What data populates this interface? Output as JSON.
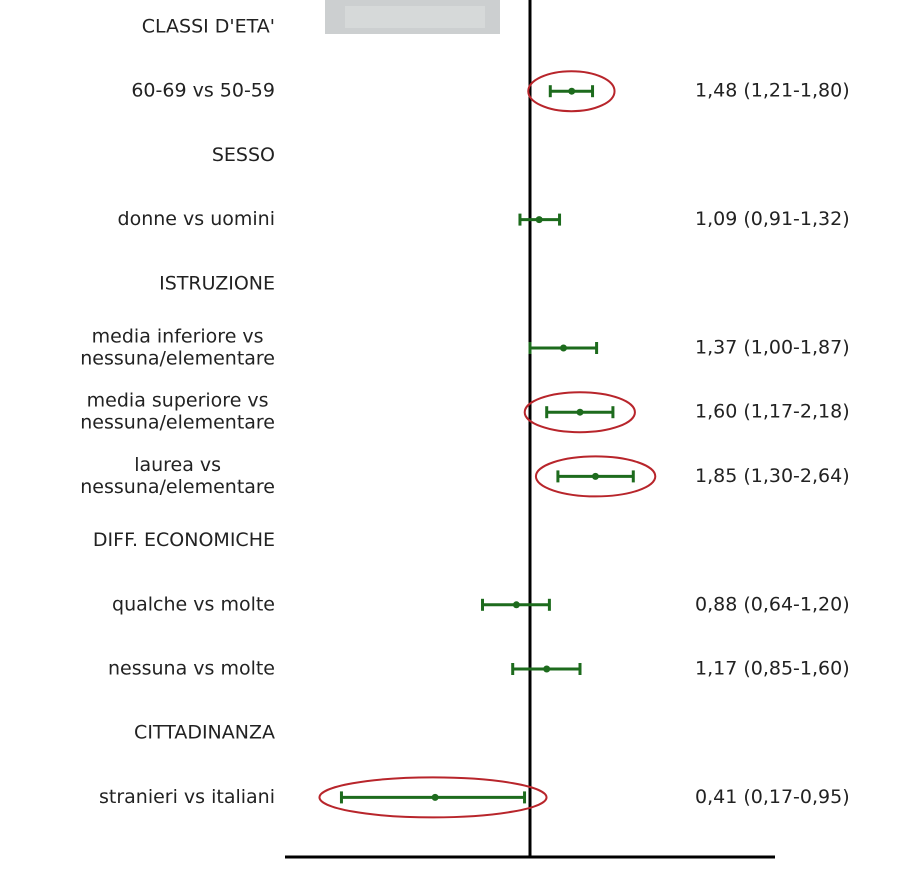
{
  "chart_data": {
    "type": "forest",
    "categories": [
      "CLASSI D'ETA'",
      "60-69 vs 50-59",
      "SESSO",
      "donne vs uomini",
      "ISTRUZIONE",
      [
        "media inferiore vs",
        "nessuna/elementare"
      ],
      [
        "media superiore vs",
        "nessuna/elementare"
      ],
      [
        "laurea vs",
        "nessuna/elementare"
      ],
      "DIFF. ECONOMICHE",
      "qualche vs molte",
      "nessuna vs molte",
      "CITTADINANZA",
      "stranieri vs italiani"
    ],
    "values": [
      null,
      1.48,
      null,
      1.09,
      null,
      1.37,
      1.6,
      1.85,
      null,
      0.88,
      1.17,
      null,
      0.41
    ],
    "lower": [
      null,
      1.21,
      null,
      0.91,
      null,
      1.0,
      1.17,
      1.3,
      null,
      0.64,
      0.85,
      null,
      0.17
    ],
    "upper": [
      null,
      1.8,
      null,
      1.32,
      null,
      1.87,
      2.18,
      2.64,
      null,
      1.2,
      1.6,
      null,
      0.95
    ],
    "value_labels": [
      null,
      "1,48 (1,21-1,80)",
      null,
      "1,09 (0,91-1,32)",
      null,
      "1,37 (1,00-1,87)",
      "1,60 (1,17-2,18)",
      "1,85 (1,30-2,64)",
      null,
      "0,88 (0,64-1,20)",
      "1,17 (0,85-1,60)",
      null,
      "0,41 (0,17-0,95)"
    ],
    "highlight": [
      false,
      true,
      false,
      false,
      false,
      false,
      true,
      true,
      false,
      false,
      false,
      false,
      true
    ],
    "color": "#1d6b1d",
    "highlight_color": "#b8252b",
    "log_x": true,
    "reference": 1,
    "xlim": [
      0.1,
      10
    ],
    "xticks": [
      {
        "value": 0.1,
        "label": "0"
      },
      1,
      10
    ]
  }
}
